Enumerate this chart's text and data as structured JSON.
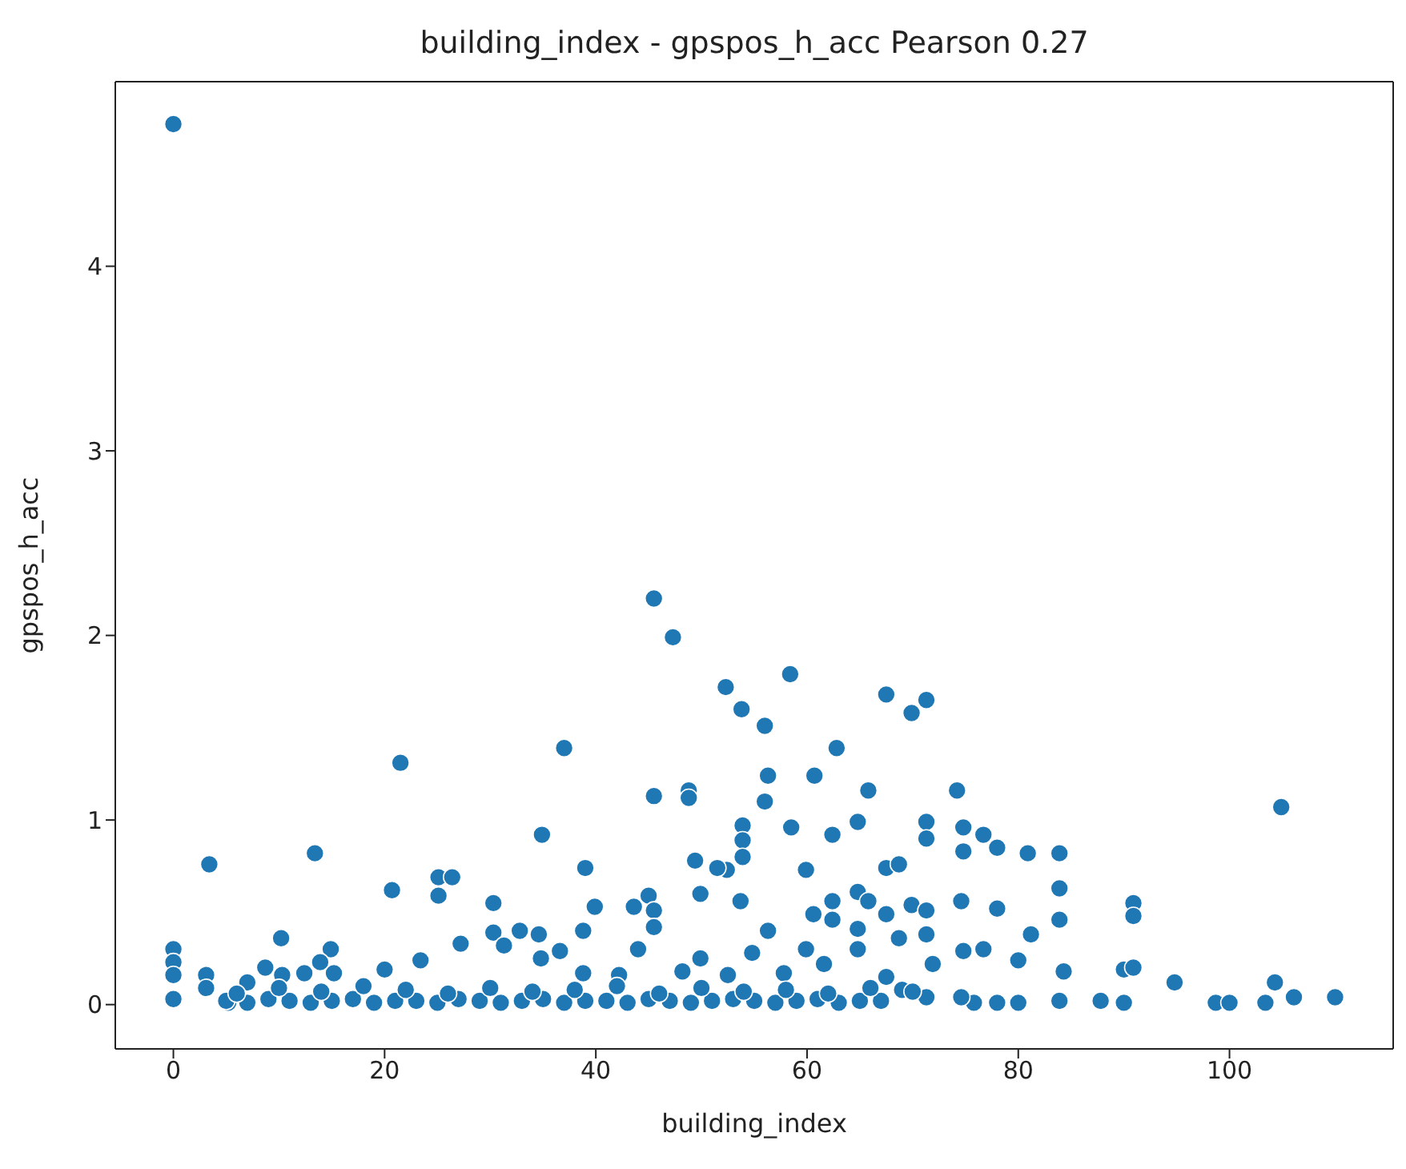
{
  "chart_data": {
    "type": "scatter",
    "title": "building_index - gpspos_h_acc Pearson 0.27",
    "xlabel": "building_index",
    "ylabel": "gpspos_h_acc",
    "x": [
      0,
      0,
      0,
      0,
      0,
      3.4,
      3.1,
      3.1,
      5.2,
      7,
      8.7,
      10.2,
      10.3,
      12.4,
      13.4,
      14.9,
      13.9,
      15.2,
      20,
      20.7,
      21.5,
      23.4,
      25.1,
      25.1,
      26.4,
      27.2,
      30.3,
      30.3,
      31.3,
      32.8,
      34.6,
      34.9,
      37,
      36.6,
      34.8,
      45.5,
      47.3,
      52.3,
      53.8,
      56,
      58.4,
      67.5,
      69.9,
      71.3,
      45.5,
      48.8,
      48.8,
      56.3,
      56,
      60.7,
      62.8,
      65.8,
      53.9,
      53.9,
      53.9,
      52.4,
      51.5,
      58.5,
      62.4,
      64.8,
      71.3,
      71.3,
      39,
      49.4,
      59.9,
      67.5,
      68.7,
      39.9,
      43.6,
      45,
      45.5,
      49.9,
      53.7,
      62.4,
      64.8,
      65.8,
      60.6,
      62.4,
      67.5,
      69.9,
      71.3,
      38.8,
      45.5,
      56.3,
      64.8,
      68.7,
      71.3,
      44,
      49.9,
      54.8,
      59.9,
      64.8,
      71.9,
      38.8,
      42.2,
      48.2,
      52.5,
      57.8,
      61.6,
      67.5,
      74.2,
      74.8,
      74.8,
      76.7,
      78,
      80.9,
      83.9,
      83.9,
      83.9,
      74.6,
      78,
      81.2,
      74.8,
      76.7,
      80,
      84.3,
      90.9,
      90.9,
      90,
      90.9,
      94.8,
      104.9,
      104.3,
      110,
      106.1,
      98.7,
      100,
      103.4,
      90,
      87.8,
      83.9,
      80,
      78,
      75.8,
      74.6,
      71.3,
      5,
      7,
      9,
      11,
      13,
      15,
      17,
      19,
      21,
      23,
      25,
      27,
      29,
      31,
      33,
      35,
      37,
      39,
      41,
      43,
      45,
      47,
      49,
      51,
      53,
      55,
      57,
      59,
      61,
      63,
      65,
      67,
      69,
      6,
      10,
      14,
      18,
      22,
      26,
      30,
      34,
      38,
      42,
      46,
      50,
      54,
      58,
      62,
      66,
      70
    ],
    "values": [
      4.77,
      0.3,
      0.23,
      0.16,
      0.03,
      0.76,
      0.16,
      0.09,
      0.01,
      0.12,
      0.2,
      0.36,
      0.16,
      0.17,
      0.82,
      0.3,
      0.23,
      0.17,
      0.19,
      0.62,
      1.31,
      0.24,
      0.69,
      0.59,
      0.69,
      0.33,
      0.55,
      0.39,
      0.32,
      0.4,
      0.38,
      0.92,
      1.39,
      0.29,
      0.25,
      2.2,
      1.99,
      1.72,
      1.6,
      1.51,
      1.79,
      1.68,
      1.58,
      1.65,
      1.13,
      1.16,
      1.12,
      1.24,
      1.1,
      1.24,
      1.39,
      1.16,
      0.97,
      0.89,
      0.8,
      0.73,
      0.74,
      0.96,
      0.92,
      0.99,
      0.99,
      0.9,
      0.74,
      0.78,
      0.73,
      0.74,
      0.76,
      0.53,
      0.53,
      0.59,
      0.51,
      0.6,
      0.56,
      0.56,
      0.61,
      0.56,
      0.49,
      0.46,
      0.49,
      0.54,
      0.51,
      0.4,
      0.42,
      0.4,
      0.41,
      0.36,
      0.38,
      0.3,
      0.25,
      0.28,
      0.3,
      0.3,
      0.22,
      0.17,
      0.16,
      0.18,
      0.16,
      0.17,
      0.22,
      0.15,
      1.16,
      0.96,
      0.83,
      0.92,
      0.85,
      0.82,
      0.82,
      0.63,
      0.46,
      0.56,
      0.52,
      0.38,
      0.29,
      0.3,
      0.24,
      0.18,
      0.55,
      0.48,
      0.19,
      0.2,
      0.12,
      1.07,
      0.12,
      0.04,
      0.04,
      0.01,
      0.01,
      0.01,
      0.01,
      0.02,
      0.02,
      0.01,
      0.01,
      0.01,
      0.04,
      0.04,
      0.02,
      0.01,
      0.03,
      0.02,
      0.01,
      0.02,
      0.03,
      0.01,
      0.02,
      0.02,
      0.01,
      0.03,
      0.02,
      0.01,
      0.02,
      0.03,
      0.01,
      0.02,
      0.02,
      0.01,
      0.03,
      0.02,
      0.01,
      0.02,
      0.03,
      0.02,
      0.01,
      0.02,
      0.03,
      0.01,
      0.02,
      0.02,
      0.08,
      0.06,
      0.09,
      0.07,
      0.1,
      0.08,
      0.06,
      0.09,
      0.07,
      0.08,
      0.1,
      0.06,
      0.09,
      0.07,
      0.08,
      0.06,
      0.09,
      0.07
    ],
    "color": "#1f77b4",
    "marker": "circle",
    "grid": false,
    "xlim": [
      -5.5,
      115.5
    ],
    "xticks": [
      0,
      20,
      40,
      60,
      80,
      100
    ],
    "ylim": [
      -0.24,
      5.0
    ],
    "yticks": [
      0,
      1,
      2,
      3,
      4
    ]
  }
}
